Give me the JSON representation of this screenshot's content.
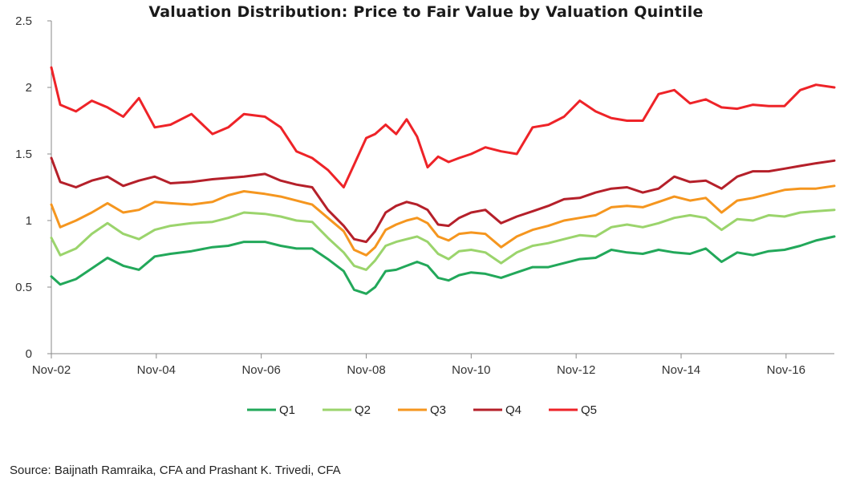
{
  "chart_data": {
    "type": "line",
    "title": "Valuation Distribution: Price to Fair Value by Valuation Quintile",
    "xlabel": "",
    "ylabel": "",
    "ylim": [
      0,
      2.5
    ],
    "y_ticks": [
      "0",
      "0.5",
      "1",
      "1.5",
      "2",
      "2.5"
    ],
    "y_tick_values": [
      0,
      0.5,
      1,
      1.5,
      2,
      2.5
    ],
    "x_range": [
      2002.83,
      2017.75
    ],
    "x_ticks": [
      "Nov-02",
      "Nov-04",
      "Nov-06",
      "Nov-08",
      "Nov-10",
      "Nov-12",
      "Nov-14",
      "Nov-16"
    ],
    "x_tick_values": [
      2002.83,
      2004.83,
      2006.83,
      2008.83,
      2010.83,
      2012.83,
      2014.83,
      2016.83
    ],
    "legend_position": "bottom",
    "series": [
      {
        "name": "Q1",
        "color": "#22a85a",
        "x": [
          2002.83,
          2003.0,
          2003.3,
          2003.6,
          2003.9,
          2004.2,
          2004.5,
          2004.8,
          2005.1,
          2005.5,
          2005.9,
          2006.2,
          2006.5,
          2006.9,
          2007.2,
          2007.5,
          2007.8,
          2008.1,
          2008.4,
          2008.6,
          2008.83,
          2009.0,
          2009.2,
          2009.4,
          2009.6,
          2009.8,
          2010.0,
          2010.2,
          2010.4,
          2010.6,
          2010.83,
          2011.1,
          2011.4,
          2011.7,
          2012.0,
          2012.3,
          2012.6,
          2012.9,
          2013.2,
          2013.5,
          2013.8,
          2014.1,
          2014.4,
          2014.7,
          2015.0,
          2015.3,
          2015.6,
          2015.9,
          2016.2,
          2016.5,
          2016.8,
          2017.1,
          2017.4,
          2017.75
        ],
        "values": [
          0.58,
          0.52,
          0.56,
          0.64,
          0.72,
          0.66,
          0.63,
          0.73,
          0.75,
          0.77,
          0.8,
          0.81,
          0.84,
          0.84,
          0.81,
          0.79,
          0.79,
          0.71,
          0.62,
          0.48,
          0.45,
          0.5,
          0.62,
          0.63,
          0.66,
          0.69,
          0.66,
          0.57,
          0.55,
          0.59,
          0.61,
          0.6,
          0.57,
          0.61,
          0.65,
          0.65,
          0.68,
          0.71,
          0.72,
          0.78,
          0.76,
          0.75,
          0.78,
          0.76,
          0.75,
          0.79,
          0.69,
          0.76,
          0.74,
          0.77,
          0.78,
          0.81,
          0.85,
          0.88
        ]
      },
      {
        "name": "Q2",
        "color": "#9bd46c",
        "x": [
          2002.83,
          2003.0,
          2003.3,
          2003.6,
          2003.9,
          2004.2,
          2004.5,
          2004.8,
          2005.1,
          2005.5,
          2005.9,
          2006.2,
          2006.5,
          2006.9,
          2007.2,
          2007.5,
          2007.8,
          2008.1,
          2008.4,
          2008.6,
          2008.83,
          2009.0,
          2009.2,
          2009.4,
          2009.6,
          2009.8,
          2010.0,
          2010.2,
          2010.4,
          2010.6,
          2010.83,
          2011.1,
          2011.4,
          2011.7,
          2012.0,
          2012.3,
          2012.6,
          2012.9,
          2013.2,
          2013.5,
          2013.8,
          2014.1,
          2014.4,
          2014.7,
          2015.0,
          2015.3,
          2015.6,
          2015.9,
          2016.2,
          2016.5,
          2016.8,
          2017.1,
          2017.4,
          2017.75
        ],
        "values": [
          0.87,
          0.74,
          0.79,
          0.9,
          0.98,
          0.9,
          0.86,
          0.93,
          0.96,
          0.98,
          0.99,
          1.02,
          1.06,
          1.05,
          1.03,
          1.0,
          0.99,
          0.87,
          0.76,
          0.66,
          0.63,
          0.7,
          0.81,
          0.84,
          0.86,
          0.88,
          0.84,
          0.75,
          0.71,
          0.77,
          0.78,
          0.76,
          0.68,
          0.76,
          0.81,
          0.83,
          0.86,
          0.89,
          0.88,
          0.95,
          0.97,
          0.95,
          0.98,
          1.02,
          1.04,
          1.02,
          0.93,
          1.01,
          1.0,
          1.04,
          1.03,
          1.06,
          1.07,
          1.08
        ]
      },
      {
        "name": "Q3",
        "color": "#f5961f",
        "x": [
          2002.83,
          2003.0,
          2003.3,
          2003.6,
          2003.9,
          2004.2,
          2004.5,
          2004.8,
          2005.1,
          2005.5,
          2005.9,
          2006.2,
          2006.5,
          2006.9,
          2007.2,
          2007.5,
          2007.8,
          2008.1,
          2008.4,
          2008.6,
          2008.83,
          2009.0,
          2009.2,
          2009.4,
          2009.6,
          2009.8,
          2010.0,
          2010.2,
          2010.4,
          2010.6,
          2010.83,
          2011.1,
          2011.4,
          2011.7,
          2012.0,
          2012.3,
          2012.6,
          2012.9,
          2013.2,
          2013.5,
          2013.8,
          2014.1,
          2014.4,
          2014.7,
          2015.0,
          2015.3,
          2015.6,
          2015.9,
          2016.2,
          2016.5,
          2016.8,
          2017.1,
          2017.4,
          2017.75
        ],
        "values": [
          1.12,
          0.95,
          1.0,
          1.06,
          1.13,
          1.06,
          1.08,
          1.14,
          1.13,
          1.12,
          1.14,
          1.19,
          1.22,
          1.2,
          1.18,
          1.15,
          1.12,
          1.02,
          0.92,
          0.78,
          0.74,
          0.8,
          0.93,
          0.97,
          1.0,
          1.02,
          0.98,
          0.88,
          0.85,
          0.9,
          0.91,
          0.9,
          0.8,
          0.88,
          0.93,
          0.96,
          1.0,
          1.02,
          1.04,
          1.1,
          1.11,
          1.1,
          1.14,
          1.18,
          1.15,
          1.17,
          1.06,
          1.15,
          1.17,
          1.2,
          1.23,
          1.24,
          1.24,
          1.26
        ]
      },
      {
        "name": "Q4",
        "color": "#b5202a",
        "x": [
          2002.83,
          2003.0,
          2003.3,
          2003.6,
          2003.9,
          2004.2,
          2004.5,
          2004.8,
          2005.1,
          2005.5,
          2005.9,
          2006.2,
          2006.5,
          2006.9,
          2007.2,
          2007.5,
          2007.8,
          2008.1,
          2008.4,
          2008.6,
          2008.83,
          2009.0,
          2009.2,
          2009.4,
          2009.6,
          2009.8,
          2010.0,
          2010.2,
          2010.4,
          2010.6,
          2010.83,
          2011.1,
          2011.4,
          2011.7,
          2012.0,
          2012.3,
          2012.6,
          2012.9,
          2013.2,
          2013.5,
          2013.8,
          2014.1,
          2014.4,
          2014.7,
          2015.0,
          2015.3,
          2015.6,
          2015.9,
          2016.2,
          2016.5,
          2016.8,
          2017.1,
          2017.4,
          2017.75
        ],
        "values": [
          1.47,
          1.29,
          1.25,
          1.3,
          1.33,
          1.26,
          1.3,
          1.33,
          1.28,
          1.29,
          1.31,
          1.32,
          1.33,
          1.35,
          1.3,
          1.27,
          1.25,
          1.08,
          0.96,
          0.86,
          0.84,
          0.92,
          1.06,
          1.11,
          1.14,
          1.12,
          1.08,
          0.97,
          0.96,
          1.02,
          1.06,
          1.08,
          0.98,
          1.03,
          1.07,
          1.11,
          1.16,
          1.17,
          1.21,
          1.24,
          1.25,
          1.21,
          1.24,
          1.33,
          1.29,
          1.3,
          1.24,
          1.33,
          1.37,
          1.37,
          1.39,
          1.41,
          1.43,
          1.45
        ]
      },
      {
        "name": "Q5",
        "color": "#ee2328",
        "x": [
          2002.83,
          2003.0,
          2003.3,
          2003.6,
          2003.9,
          2004.2,
          2004.5,
          2004.8,
          2005.1,
          2005.5,
          2005.9,
          2006.2,
          2006.5,
          2006.9,
          2007.2,
          2007.5,
          2007.8,
          2008.1,
          2008.4,
          2008.6,
          2008.83,
          2009.0,
          2009.2,
          2009.4,
          2009.6,
          2009.8,
          2010.0,
          2010.2,
          2010.4,
          2010.6,
          2010.83,
          2011.1,
          2011.4,
          2011.7,
          2012.0,
          2012.3,
          2012.6,
          2012.9,
          2013.2,
          2013.5,
          2013.8,
          2014.1,
          2014.4,
          2014.7,
          2015.0,
          2015.3,
          2015.6,
          2015.9,
          2016.2,
          2016.5,
          2016.8,
          2017.1,
          2017.4,
          2017.75
        ],
        "values": [
          2.15,
          1.87,
          1.82,
          1.9,
          1.85,
          1.78,
          1.92,
          1.7,
          1.72,
          1.8,
          1.65,
          1.7,
          1.8,
          1.78,
          1.7,
          1.52,
          1.47,
          1.38,
          1.25,
          1.42,
          1.62,
          1.65,
          1.72,
          1.65,
          1.76,
          1.63,
          1.4,
          1.48,
          1.44,
          1.47,
          1.5,
          1.55,
          1.52,
          1.5,
          1.7,
          1.72,
          1.78,
          1.9,
          1.82,
          1.77,
          1.75,
          1.75,
          1.95,
          1.98,
          1.88,
          1.91,
          1.85,
          1.84,
          1.87,
          1.86,
          1.86,
          1.98,
          2.02,
          2.0
        ]
      }
    ],
    "source": "Source: Baijnath Ramraika, CFA and Prashant K. Trivedi, CFA"
  }
}
